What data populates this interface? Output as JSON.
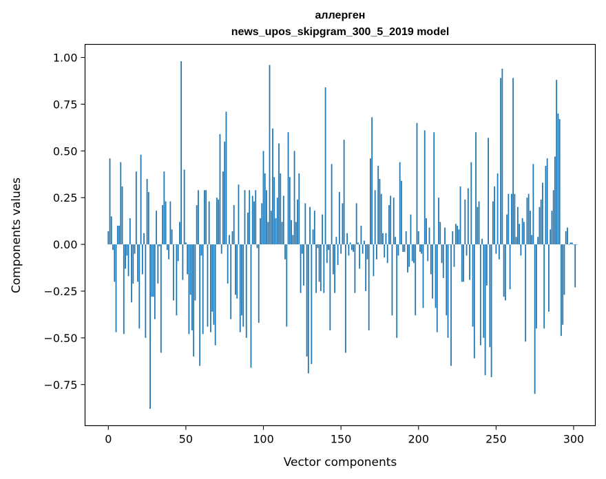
{
  "chart_data": {
    "type": "bar",
    "title_line1": "аллерген",
    "title_line2": "news_upos_skipgram_300_5_2019 model",
    "xlabel": "Vector components",
    "ylabel": "Components values",
    "xlim": [
      -15,
      314
    ],
    "ylim": [
      -0.97,
      1.07
    ],
    "x_ticks": [
      0,
      50,
      100,
      150,
      200,
      250,
      300
    ],
    "y_ticks": [
      -0.75,
      -0.5,
      -0.25,
      0.0,
      0.25,
      0.5,
      0.75,
      1.0
    ],
    "x_tick_labels": [
      "0",
      "50",
      "100",
      "150",
      "200",
      "250",
      "300"
    ],
    "y_tick_labels": [
      "−0.75",
      "−0.50",
      "−0.25",
      "0.00",
      "0.25",
      "0.50",
      "0.75",
      "1.00"
    ],
    "bar_color": "#1f77b4",
    "grid": false,
    "values": [
      0.07,
      0.46,
      0.15,
      -0.03,
      -0.2,
      -0.47,
      0.1,
      0.1,
      0.44,
      0.31,
      -0.48,
      -0.13,
      -0.06,
      -0.17,
      0.14,
      -0.31,
      -0.21,
      -0.05,
      0.39,
      -0.2,
      -0.45,
      0.48,
      -0.16,
      0.06,
      -0.5,
      0.35,
      0.28,
      -0.88,
      -0.28,
      -0.28,
      -0.4,
      0.18,
      -0.21,
      -0.01,
      -0.58,
      0.21,
      0.39,
      0.23,
      -0.03,
      -0.08,
      0.23,
      0.08,
      -0.3,
      0.0,
      -0.38,
      -0.09,
      0.12,
      0.98,
      -0.19,
      0.4,
      0.01,
      -0.16,
      -0.48,
      -0.27,
      -0.46,
      -0.6,
      -0.3,
      0.21,
      0.29,
      -0.65,
      -0.06,
      -0.48,
      0.29,
      0.29,
      -0.44,
      0.23,
      -0.47,
      -0.36,
      -0.43,
      -0.54,
      0.25,
      0.24,
      0.59,
      -0.05,
      0.39,
      0.55,
      0.71,
      -0.21,
      0.05,
      -0.4,
      0.07,
      0.21,
      -0.27,
      -0.29,
      0.32,
      -0.47,
      -0.38,
      -0.44,
      0.29,
      -0.5,
      0.17,
      0.29,
      -0.66,
      0.26,
      0.23,
      0.29,
      -0.02,
      -0.42,
      0.14,
      0.22,
      0.5,
      0.38,
      0.29,
      0.12,
      0.96,
      0.18,
      0.62,
      0.36,
      0.14,
      0.25,
      0.54,
      0.38,
      0.12,
      0.26,
      -0.08,
      -0.44,
      0.6,
      0.36,
      0.13,
      0.05,
      0.5,
      0.12,
      0.24,
      0.38,
      -0.26,
      -0.05,
      -0.22,
      0.22,
      -0.6,
      -0.69,
      0.2,
      -0.64,
      0.08,
      0.18,
      -0.26,
      -0.02,
      -0.2,
      -0.25,
      0.16,
      -0.26,
      0.84,
      -0.1,
      -0.03,
      -0.46,
      0.43,
      -0.16,
      -0.26,
      0.04,
      -0.11,
      0.28,
      -0.05,
      0.22,
      0.56,
      -0.58,
      0.06,
      -0.06,
      0.01,
      -0.03,
      -0.04,
      -0.26,
      0.22,
      0.01,
      -0.13,
      0.1,
      -0.05,
      0.02,
      -0.25,
      -0.08,
      -0.46,
      0.46,
      0.68,
      -0.17,
      0.29,
      -0.08,
      0.42,
      0.35,
      0.27,
      0.06,
      -0.07,
      0.06,
      -0.1,
      0.21,
      0.26,
      -0.38,
      0.25,
      0.04,
      -0.5,
      -0.06,
      0.44,
      0.34,
      -0.04,
      -0.04,
      0.07,
      -0.15,
      -0.12,
      0.16,
      -0.09,
      -0.1,
      -0.38,
      0.65,
      0.07,
      -0.04,
      -0.05,
      -0.34,
      0.61,
      0.14,
      -0.09,
      0.09,
      -0.16,
      -0.29,
      0.6,
      -0.34,
      -0.47,
      0.25,
      0.12,
      -0.1,
      -0.18,
      0.09,
      -0.38,
      -0.5,
      0.0,
      -0.65,
      0.07,
      -0.12,
      0.11,
      0.1,
      0.08,
      0.31,
      -0.2,
      -0.2,
      0.24,
      -0.06,
      0.3,
      -0.19,
      0.44,
      -0.44,
      -0.61,
      0.6,
      0.2,
      0.23,
      -0.54,
      0.03,
      -0.5,
      -0.7,
      -0.22,
      0.57,
      -0.55,
      -0.71,
      0.23,
      0.31,
      -0.05,
      0.38,
      -0.08,
      0.89,
      0.94,
      -0.28,
      -0.3,
      0.16,
      0.27,
      -0.24,
      0.27,
      0.89,
      0.27,
      0.04,
      0.2,
      0.11,
      -0.06,
      0.14,
      0.12,
      -0.52,
      0.25,
      0.27,
      0.18,
      0.05,
      0.43,
      -0.8,
      -0.45,
      0.04,
      0.2,
      0.24,
      0.33,
      -0.45,
      0.42,
      0.46,
      -0.36,
      0.08,
      0.18,
      0.29,
      0.47,
      0.88,
      0.7,
      0.67,
      -0.49,
      -0.43,
      -0.27,
      0.07,
      0.09,
      0.0,
      0.01,
      0.01,
      0.0,
      -0.23,
      0.0
    ]
  }
}
